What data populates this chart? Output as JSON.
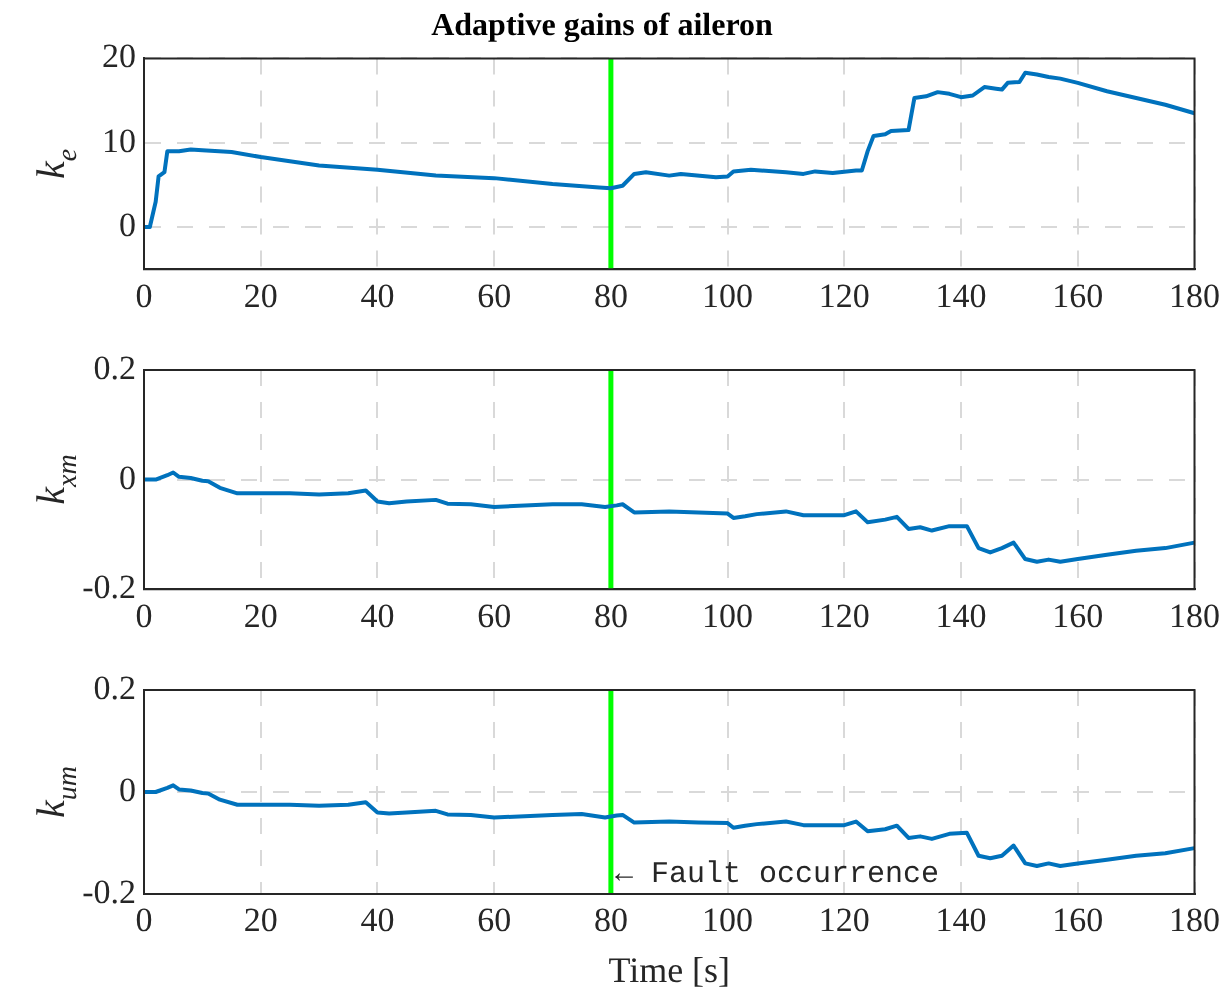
{
  "chart_data": [
    {
      "type": "line",
      "title": "Adaptive gains of aileron",
      "ylabel": "k$_{e}$",
      "xlim": [
        0,
        180
      ],
      "xticks": [
        0,
        20,
        40,
        60,
        80,
        100,
        120,
        140,
        160,
        180
      ],
      "ylim": [
        -5,
        20
      ],
      "yticks": [
        0,
        10,
        20
      ],
      "grid": true,
      "legend": false,
      "ref_lines": [
        {
          "axis": "x",
          "value": 80,
          "color": "#00ff00"
        }
      ],
      "series": [
        {
          "color": "#0072bd",
          "x": [
            0,
            1,
            2,
            2.5,
            3.5,
            4,
            6,
            8,
            10,
            15,
            20,
            30,
            40,
            50,
            60,
            70,
            78,
            80,
            82,
            84,
            86,
            90,
            92,
            98,
            100,
            101,
            104,
            110,
            113,
            115,
            118,
            122,
            123,
            124,
            125,
            127,
            128,
            131,
            132,
            134,
            136,
            138,
            140,
            142,
            144,
            146,
            147,
            148,
            150,
            151,
            153,
            155,
            157,
            160,
            165,
            170,
            175,
            180
          ],
          "values": [
            0,
            0,
            3,
            6,
            6.5,
            9,
            9,
            9.2,
            9.1,
            8.9,
            8.3,
            7.3,
            6.8,
            6.1,
            5.8,
            5.1,
            4.7,
            4.6,
            4.9,
            6.3,
            6.5,
            6.1,
            6.3,
            5.9,
            6,
            6.6,
            6.8,
            6.5,
            6.3,
            6.6,
            6.4,
            6.7,
            6.7,
            9,
            10.8,
            11,
            11.4,
            11.5,
            15.3,
            15.5,
            16,
            15.8,
            15.4,
            15.6,
            16.6,
            16.4,
            16.3,
            17.1,
            17.2,
            18.3,
            18.1,
            17.8,
            17.6,
            17.1,
            16.1,
            15.3,
            14.5,
            13.5
          ]
        }
      ]
    },
    {
      "type": "line",
      "ylabel": "k$_{xm}$",
      "xlim": [
        0,
        180
      ],
      "xticks": [
        0,
        20,
        40,
        60,
        80,
        100,
        120,
        140,
        160,
        180
      ],
      "ylim": [
        -0.2,
        0.2
      ],
      "yticks": [
        -0.2,
        0,
        0.2
      ],
      "grid": true,
      "legend": false,
      "ref_lines": [
        {
          "axis": "x",
          "value": 80,
          "color": "#00ff00"
        }
      ],
      "series": [
        {
          "color": "#0072bd",
          "x": [
            0,
            2,
            4,
            5,
            6,
            8,
            10,
            11,
            13,
            16,
            25,
            30,
            35,
            38,
            40,
            42,
            45,
            50,
            52,
            56,
            60,
            70,
            75,
            79,
            81,
            82,
            84,
            90,
            95,
            100,
            101,
            103,
            105,
            110,
            113,
            120,
            122,
            124,
            127,
            129,
            131,
            133,
            135,
            138,
            141,
            143,
            145,
            147,
            149,
            151,
            153,
            155,
            157,
            160,
            165,
            170,
            175,
            180
          ],
          "values": [
            0,
            0,
            0.008,
            0.013,
            0.005,
            0.003,
            -0.002,
            -0.003,
            -0.015,
            -0.025,
            -0.025,
            -0.027,
            -0.025,
            -0.02,
            -0.04,
            -0.043,
            -0.04,
            -0.037,
            -0.044,
            -0.045,
            -0.05,
            -0.045,
            -0.045,
            -0.05,
            -0.047,
            -0.045,
            -0.06,
            -0.058,
            -0.06,
            -0.062,
            -0.07,
            -0.067,
            -0.063,
            -0.058,
            -0.065,
            -0.065,
            -0.058,
            -0.078,
            -0.073,
            -0.068,
            -0.09,
            -0.087,
            -0.093,
            -0.085,
            -0.085,
            -0.125,
            -0.133,
            -0.125,
            -0.115,
            -0.145,
            -0.15,
            -0.146,
            -0.15,
            -0.145,
            -0.137,
            -0.13,
            -0.125,
            -0.115
          ]
        }
      ]
    },
    {
      "type": "line",
      "ylabel": "k$_{um}$",
      "xlabel": "Time [s]",
      "xlim": [
        0,
        180
      ],
      "xticks": [
        0,
        20,
        40,
        60,
        80,
        100,
        120,
        140,
        160,
        180
      ],
      "ylim": [
        -0.2,
        0.2
      ],
      "yticks": [
        -0.2,
        0,
        0.2
      ],
      "grid": true,
      "legend": false,
      "ref_lines": [
        {
          "axis": "x",
          "value": 80,
          "color": "#00ff00"
        }
      ],
      "annotations": [
        {
          "text": "← Fault occurrence",
          "x": 80,
          "y": -0.16
        }
      ],
      "series": [
        {
          "color": "#0072bd",
          "x": [
            0,
            2,
            4,
            5,
            6,
            8,
            10,
            11,
            13,
            16,
            25,
            30,
            35,
            38,
            40,
            42,
            45,
            50,
            52,
            56,
            60,
            70,
            75,
            79,
            81,
            82,
            84,
            90,
            95,
            100,
            101,
            103,
            105,
            110,
            113,
            120,
            122,
            124,
            127,
            129,
            131,
            133,
            135,
            138,
            141,
            143,
            145,
            147,
            149,
            151,
            153,
            155,
            157,
            160,
            165,
            170,
            175,
            180
          ],
          "values": [
            0,
            0,
            0.008,
            0.013,
            0.005,
            0.003,
            -0.002,
            -0.003,
            -0.015,
            -0.025,
            -0.025,
            -0.027,
            -0.025,
            -0.02,
            -0.04,
            -0.042,
            -0.04,
            -0.037,
            -0.044,
            -0.045,
            -0.05,
            -0.045,
            -0.043,
            -0.05,
            -0.046,
            -0.045,
            -0.06,
            -0.058,
            -0.06,
            -0.061,
            -0.07,
            -0.066,
            -0.063,
            -0.058,
            -0.065,
            -0.065,
            -0.058,
            -0.077,
            -0.073,
            -0.066,
            -0.09,
            -0.087,
            -0.092,
            -0.082,
            -0.08,
            -0.125,
            -0.13,
            -0.125,
            -0.105,
            -0.14,
            -0.145,
            -0.14,
            -0.145,
            -0.14,
            -0.133,
            -0.125,
            -0.12,
            -0.11
          ]
        }
      ]
    }
  ]
}
